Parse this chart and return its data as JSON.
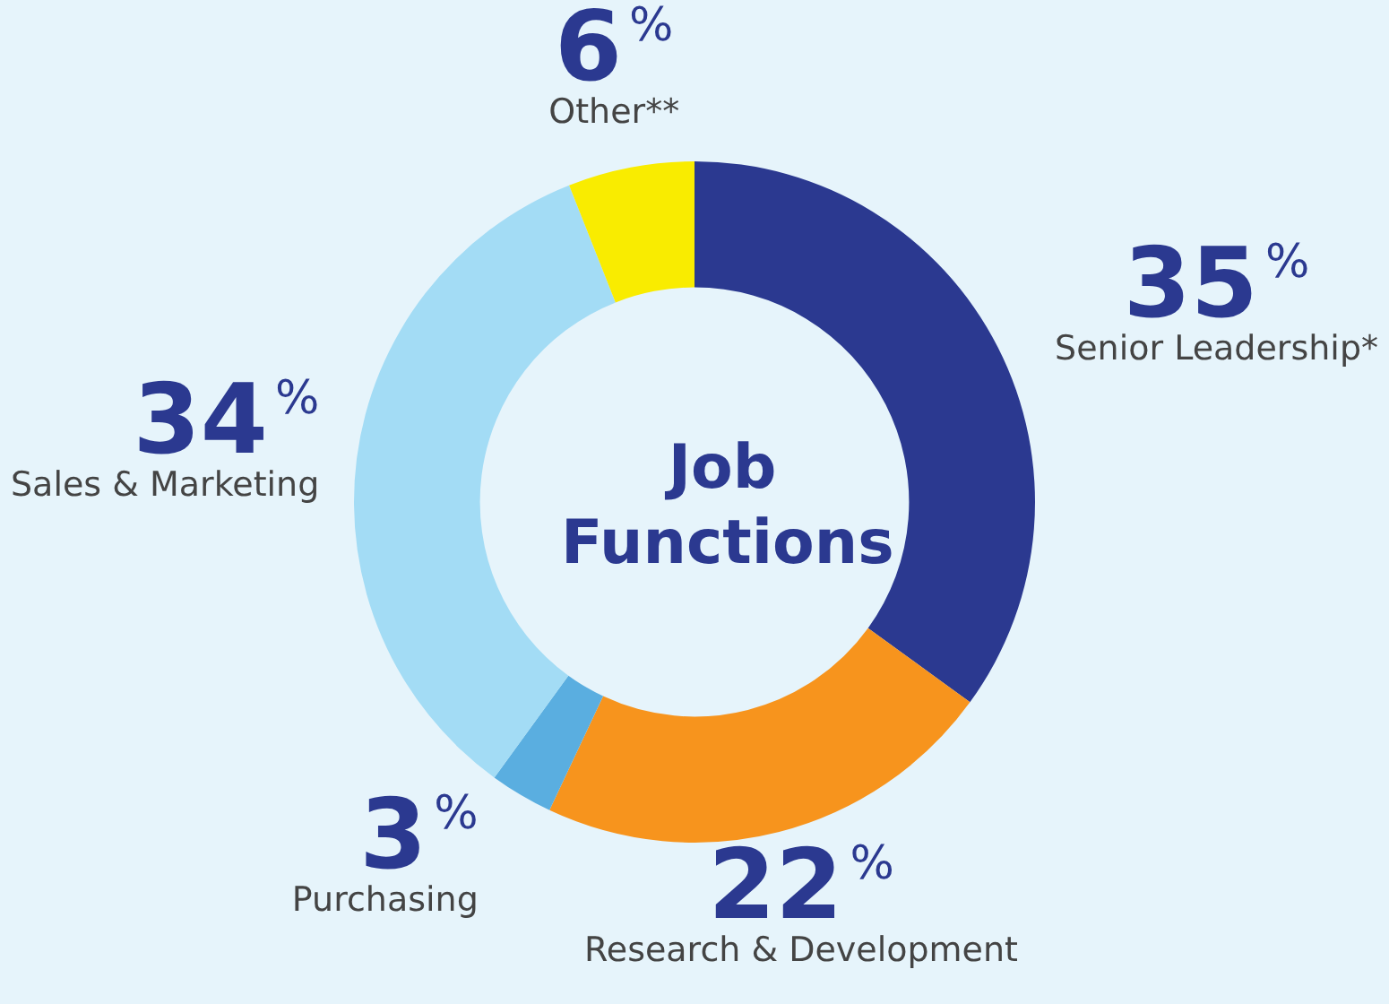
{
  "chart_data": {
    "type": "donut",
    "title": "Job Functions",
    "categories": [
      "Senior Leadership*",
      "Research & Development",
      "Purchasing",
      "Sales & Marketing",
      "Other**"
    ],
    "values": [
      35,
      22,
      3,
      34,
      6
    ],
    "colors": [
      "#2b3990",
      "#f7941d",
      "#5aaee0",
      "#a3dcf5",
      "#f9ec00"
    ],
    "value_labels": [
      "35%",
      "22%",
      "3%",
      "34%",
      "6%"
    ],
    "legend": false
  }
}
